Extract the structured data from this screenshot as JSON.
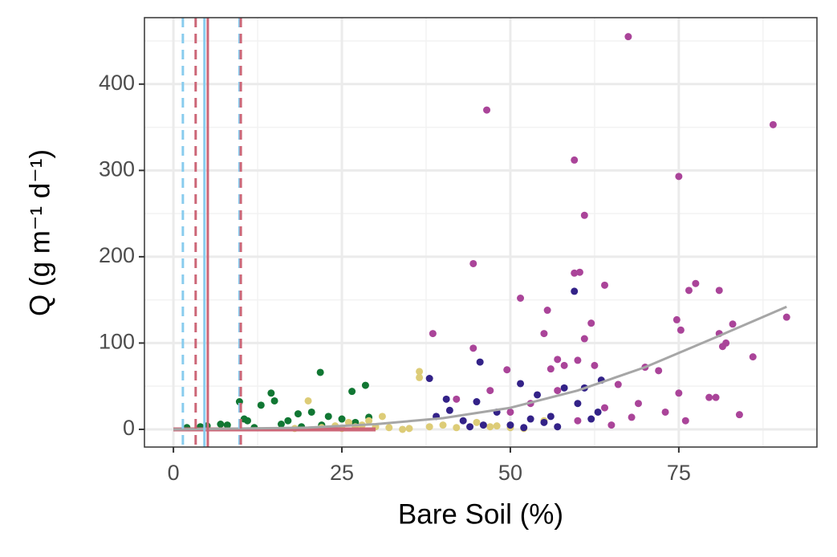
{
  "chart_data": {
    "type": "scatter",
    "x_label": "Bare Soil (%)",
    "y_label": "Q (g m⁻¹ d⁻¹)",
    "xlim": [
      -4.3,
      95.5
    ],
    "ylim": [
      -20.5,
      477
    ],
    "xticks": [
      0,
      25,
      50,
      75
    ],
    "yticks": [
      0,
      100,
      200,
      300,
      400
    ],
    "minor_xticks": [
      12.5,
      37.5,
      62.5,
      87.5
    ],
    "minor_yticks": [
      50,
      150,
      250,
      350,
      450
    ],
    "grid": true,
    "vlines": [
      {
        "x": 1.4,
        "color": "#88ccee",
        "dashed": true
      },
      {
        "x": 9.8,
        "color": "#88ccee",
        "dashed": true
      },
      {
        "x": 4.6,
        "color": "#88ccee",
        "dashed": false
      },
      {
        "x": 3.3,
        "color": "#cc6677",
        "dashed": true
      },
      {
        "x": 10,
        "color": "#cc6677",
        "dashed": true
      },
      {
        "x": 5.1,
        "color": "#cc6677",
        "dashed": false
      }
    ],
    "series": [
      {
        "color": "#117733",
        "x": [
          21.8,
          28.5,
          26.5,
          14.5,
          15,
          9.8,
          13,
          10.5,
          11,
          18.5,
          23,
          20.5,
          17,
          25,
          29,
          7,
          5,
          2,
          4,
          8,
          12,
          16,
          19,
          22,
          27
        ],
        "values": [
          66,
          51,
          44,
          42,
          33,
          32,
          28,
          12,
          10,
          18,
          15,
          20,
          10,
          12,
          14,
          6,
          4,
          2,
          3,
          5,
          2,
          6,
          3,
          5,
          8
        ]
      },
      {
        "color": "#ddcc77",
        "x": [
          36.5,
          36.5,
          20,
          31,
          26,
          28,
          30,
          32,
          35,
          38,
          40,
          42,
          45,
          48,
          50,
          52,
          55,
          24,
          22,
          18,
          34,
          29,
          25,
          27,
          47
        ],
        "values": [
          60,
          67,
          33,
          15,
          8,
          5,
          3,
          2,
          1,
          3,
          5,
          2,
          8,
          4,
          2,
          1,
          10,
          4,
          2,
          1,
          0,
          10,
          1,
          3,
          3
        ]
      },
      {
        "color": "#332288",
        "x": [
          59.5,
          45.5,
          38,
          51.5,
          63.5,
          45,
          40.5,
          41,
          54,
          58,
          48,
          43,
          50,
          55,
          56,
          62,
          44,
          52,
          46,
          60,
          63,
          53,
          57,
          39,
          61
        ],
        "values": [
          160,
          78,
          59,
          53,
          57,
          32,
          35,
          22,
          40,
          48,
          20,
          10,
          5,
          8,
          15,
          12,
          3,
          2,
          5,
          30,
          20,
          12,
          3,
          15,
          48
        ]
      },
      {
        "color": "#aa4499",
        "x": [
          67.5,
          46.5,
          89,
          59.5,
          75,
          61,
          44.5,
          59.5,
          60.3,
          64,
          76.5,
          77.5,
          81,
          51.5,
          55.5,
          91,
          74.7,
          62,
          83,
          38.5,
          55,
          81,
          75.3,
          61,
          82,
          81.5,
          44.5,
          86,
          57,
          60,
          49.5,
          72,
          70,
          58,
          56,
          62.5,
          66,
          75,
          79.5,
          80.5,
          69,
          84,
          76,
          68,
          73,
          64,
          57,
          53,
          47,
          42,
          60,
          65,
          50
        ],
        "values": [
          455,
          370,
          353,
          312,
          293,
          248,
          192,
          181,
          182,
          167,
          161,
          169,
          161,
          152,
          138,
          130,
          127,
          123,
          122,
          111,
          111,
          111,
          115,
          105,
          100,
          96,
          94,
          84,
          81,
          80,
          69,
          68,
          72,
          74,
          70,
          74,
          52,
          42,
          37,
          37,
          30,
          17,
          10,
          14,
          20,
          25,
          45,
          30,
          45,
          35,
          10,
          5,
          20
        ]
      }
    ],
    "lines": [
      {
        "color": "#cc6677",
        "x": [
          0,
          30
        ],
        "values": [
          0,
          0
        ]
      },
      {
        "color": "#a6a6a6",
        "x": [
          0,
          20,
          30,
          40,
          50,
          60,
          70,
          80,
          91
        ],
        "values": [
          0,
          2,
          6,
          13,
          25,
          45,
          72,
          105,
          142
        ]
      }
    ]
  }
}
